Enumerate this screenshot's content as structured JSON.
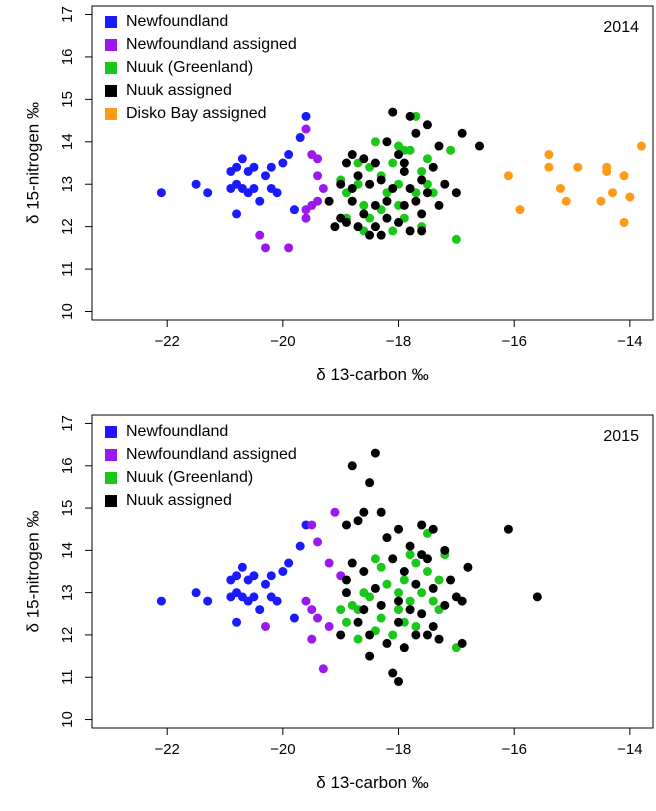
{
  "colors": {
    "Newfoundland": "#1a1aff",
    "Newfoundland assigned": "#9b19ef",
    "Nuuk (Greenland)": "#19c819",
    "Nuuk assigned": "#000000",
    "Disko Bay assigned": "#ff9a19"
  },
  "chart_data": [
    {
      "type": "scatter",
      "year_label": "2014",
      "xlabel": "δ 13-carbon ‰",
      "ylabel": "δ 15-nitrogen ‰",
      "xlim": [
        -23.3,
        -13.6
      ],
      "ylim": [
        9.8,
        17.2
      ],
      "x_ticks": [
        -22,
        -20,
        -18,
        -16,
        -14
      ],
      "x_tick_labels": [
        "−22",
        "−20",
        "−18",
        "−16",
        "−14"
      ],
      "y_ticks": [
        10,
        11,
        12,
        13,
        14,
        15,
        16,
        17
      ],
      "legend_position": "top-left",
      "series": [
        {
          "name": "Newfoundland",
          "points": [
            [
              -22.1,
              12.8
            ],
            [
              -21.5,
              13.0
            ],
            [
              -21.3,
              12.8
            ],
            [
              -20.9,
              13.3
            ],
            [
              -20.8,
              13.4
            ],
            [
              -20.7,
              13.6
            ],
            [
              -20.6,
              13.3
            ],
            [
              -20.5,
              13.4
            ],
            [
              -20.3,
              13.2
            ],
            [
              -20.2,
              13.4
            ],
            [
              -20.0,
              13.5
            ],
            [
              -19.9,
              13.7
            ],
            [
              -19.7,
              14.1
            ],
            [
              -19.6,
              14.6
            ],
            [
              -20.8,
              13.0
            ],
            [
              -20.7,
              12.9
            ],
            [
              -20.6,
              12.8
            ],
            [
              -20.5,
              12.9
            ],
            [
              -20.4,
              12.6
            ],
            [
              -20.2,
              12.9
            ],
            [
              -20.1,
              12.8
            ],
            [
              -20.9,
              12.9
            ],
            [
              -20.8,
              12.3
            ],
            [
              -19.8,
              12.4
            ]
          ]
        },
        {
          "name": "Newfoundland assigned",
          "points": [
            [
              -19.6,
              14.3
            ],
            [
              -19.5,
              13.7
            ],
            [
              -19.4,
              13.6
            ],
            [
              -19.4,
              13.2
            ],
            [
              -19.3,
              12.9
            ],
            [
              -19.5,
              12.5
            ],
            [
              -19.4,
              12.6
            ],
            [
              -19.6,
              12.4
            ],
            [
              -20.4,
              11.8
            ],
            [
              -20.3,
              11.5
            ],
            [
              -19.9,
              11.5
            ],
            [
              -19.6,
              12.2
            ]
          ]
        },
        {
          "name": "Nuuk (Greenland)",
          "points": [
            [
              -19.0,
              13.1
            ],
            [
              -18.9,
              12.8
            ],
            [
              -18.8,
              12.6
            ],
            [
              -18.7,
              13.0
            ],
            [
              -18.6,
              12.5
            ],
            [
              -18.5,
              13.4
            ],
            [
              -18.5,
              12.2
            ],
            [
              -18.4,
              14.0
            ],
            [
              -18.4,
              12.0
            ],
            [
              -18.3,
              13.2
            ],
            [
              -18.2,
              12.8
            ],
            [
              -18.1,
              13.5
            ],
            [
              -18.0,
              12.5
            ],
            [
              -18.0,
              13.0
            ],
            [
              -17.9,
              12.2
            ],
            [
              -17.8,
              13.8
            ],
            [
              -17.7,
              12.8
            ],
            [
              -17.7,
              14.6
            ],
            [
              -17.6,
              13.3
            ],
            [
              -17.5,
              13.6
            ],
            [
              -17.4,
              12.8
            ],
            [
              -17.1,
              13.8
            ],
            [
              -17.0,
              11.7
            ],
            [
              -18.9,
              12.2
            ],
            [
              -18.6,
              11.9
            ],
            [
              -18.3,
              12.4
            ],
            [
              -18.1,
              11.9
            ],
            [
              -17.9,
              13.8
            ],
            [
              -17.6,
              12.0
            ],
            [
              -17.5,
              13.0
            ],
            [
              -18.7,
              13.5
            ],
            [
              -18.0,
              13.9
            ]
          ]
        },
        {
          "name": "Nuuk assigned",
          "points": [
            [
              -19.1,
              12.0
            ],
            [
              -19.0,
              12.2
            ],
            [
              -19.0,
              13.0
            ],
            [
              -18.9,
              13.5
            ],
            [
              -18.9,
              12.1
            ],
            [
              -18.8,
              13.7
            ],
            [
              -18.8,
              12.6
            ],
            [
              -18.7,
              13.2
            ],
            [
              -18.7,
              12.0
            ],
            [
              -18.6,
              13.6
            ],
            [
              -18.6,
              12.3
            ],
            [
              -18.5,
              13.0
            ],
            [
              -18.5,
              11.8
            ],
            [
              -18.4,
              13.5
            ],
            [
              -18.4,
              12.5
            ],
            [
              -18.3,
              13.1
            ],
            [
              -18.3,
              11.8
            ],
            [
              -18.2,
              14.0
            ],
            [
              -18.2,
              12.2
            ],
            [
              -18.1,
              14.7
            ],
            [
              -18.1,
              12.9
            ],
            [
              -18.0,
              13.7
            ],
            [
              -18.0,
              12.1
            ],
            [
              -17.9,
              13.3
            ],
            [
              -17.9,
              12.5
            ],
            [
              -17.8,
              14.6
            ],
            [
              -17.8,
              12.9
            ],
            [
              -17.8,
              11.9
            ],
            [
              -17.7,
              14.2
            ],
            [
              -17.7,
              12.6
            ],
            [
              -17.6,
              13.1
            ],
            [
              -17.6,
              12.3
            ],
            [
              -17.5,
              14.4
            ],
            [
              -17.5,
              12.8
            ],
            [
              -17.4,
              13.4
            ],
            [
              -17.3,
              13.9
            ],
            [
              -17.2,
              13.0
            ],
            [
              -17.0,
              12.8
            ],
            [
              -16.9,
              14.2
            ],
            [
              -16.6,
              13.9
            ],
            [
              -19.2,
              12.6
            ],
            [
              -18.8,
              12.9
            ],
            [
              -18.4,
              12.0
            ],
            [
              -18.2,
              12.6
            ],
            [
              -17.9,
              13.5
            ],
            [
              -17.6,
              11.9
            ],
            [
              -17.3,
              12.5
            ]
          ]
        },
        {
          "name": "Disko Bay assigned",
          "points": [
            [
              -16.1,
              13.2
            ],
            [
              -15.9,
              12.4
            ],
            [
              -15.4,
              13.7
            ],
            [
              -15.4,
              13.4
            ],
            [
              -15.2,
              12.9
            ],
            [
              -15.1,
              12.6
            ],
            [
              -14.9,
              13.4
            ],
            [
              -14.5,
              12.6
            ],
            [
              -14.4,
              13.3
            ],
            [
              -14.4,
              13.4
            ],
            [
              -14.3,
              12.8
            ],
            [
              -14.1,
              13.2
            ],
            [
              -14.1,
              12.1
            ],
            [
              -14.0,
              12.7
            ],
            [
              -13.8,
              13.9
            ]
          ]
        }
      ]
    },
    {
      "type": "scatter",
      "year_label": "2015",
      "xlabel": "δ 13-carbon ‰",
      "ylabel": "δ 15-nitrogen ‰",
      "xlim": [
        -23.3,
        -13.6
      ],
      "ylim": [
        9.8,
        17.2
      ],
      "x_ticks": [
        -22,
        -20,
        -18,
        -16,
        -14
      ],
      "x_tick_labels": [
        "−22",
        "−20",
        "−18",
        "−16",
        "−14"
      ],
      "y_ticks": [
        10,
        11,
        12,
        13,
        14,
        15,
        16,
        17
      ],
      "legend_position": "top-left",
      "series": [
        {
          "name": "Newfoundland",
          "points": [
            [
              -22.1,
              12.8
            ],
            [
              -21.5,
              13.0
            ],
            [
              -21.3,
              12.8
            ],
            [
              -20.9,
              13.3
            ],
            [
              -20.8,
              13.4
            ],
            [
              -20.7,
              13.6
            ],
            [
              -20.6,
              13.3
            ],
            [
              -20.5,
              13.4
            ],
            [
              -20.3,
              13.2
            ],
            [
              -20.2,
              13.4
            ],
            [
              -20.0,
              13.5
            ],
            [
              -19.9,
              13.7
            ],
            [
              -19.7,
              14.1
            ],
            [
              -19.6,
              14.6
            ],
            [
              -20.8,
              13.0
            ],
            [
              -20.7,
              12.9
            ],
            [
              -20.6,
              12.8
            ],
            [
              -20.5,
              12.9
            ],
            [
              -20.4,
              12.6
            ],
            [
              -20.2,
              12.9
            ],
            [
              -20.1,
              12.8
            ],
            [
              -20.9,
              12.9
            ],
            [
              -20.8,
              12.3
            ],
            [
              -19.8,
              12.4
            ]
          ]
        },
        {
          "name": "Newfoundland assigned",
          "points": [
            [
              -19.5,
              14.6
            ],
            [
              -19.4,
              14.2
            ],
            [
              -19.1,
              14.9
            ],
            [
              -19.2,
              13.7
            ],
            [
              -19.0,
              13.4
            ],
            [
              -19.6,
              12.8
            ],
            [
              -19.5,
              12.6
            ],
            [
              -19.4,
              12.4
            ],
            [
              -19.5,
              11.9
            ],
            [
              -20.3,
              12.2
            ],
            [
              -19.3,
              11.2
            ],
            [
              -19.2,
              12.2
            ]
          ]
        },
        {
          "name": "Nuuk (Greenland)",
          "points": [
            [
              -19.0,
              12.6
            ],
            [
              -18.9,
              12.3
            ],
            [
              -18.8,
              12.7
            ],
            [
              -18.7,
              12.6
            ],
            [
              -18.6,
              13.0
            ],
            [
              -18.5,
              12.9
            ],
            [
              -18.4,
              13.8
            ],
            [
              -18.4,
              12.1
            ],
            [
              -18.3,
              12.4
            ],
            [
              -18.2,
              13.2
            ],
            [
              -18.0,
              13.0
            ],
            [
              -18.0,
              12.6
            ],
            [
              -17.9,
              13.3
            ],
            [
              -17.8,
              12.8
            ],
            [
              -17.7,
              13.7
            ],
            [
              -17.7,
              12.2
            ],
            [
              -17.6,
              14.6
            ],
            [
              -17.6,
              13.0
            ],
            [
              -17.5,
              13.5
            ],
            [
              -17.5,
              14.4
            ],
            [
              -17.4,
              12.8
            ],
            [
              -17.3,
              13.3
            ],
            [
              -17.2,
              13.9
            ],
            [
              -17.0,
              11.7
            ],
            [
              -18.7,
              11.9
            ],
            [
              -18.1,
              12.0
            ],
            [
              -17.8,
              13.9
            ],
            [
              -17.3,
              12.6
            ],
            [
              -18.3,
              13.6
            ],
            [
              -17.9,
              12.3
            ]
          ]
        },
        {
          "name": "Nuuk assigned",
          "points": [
            [
              -18.8,
              16.0
            ],
            [
              -18.4,
              16.3
            ],
            [
              -18.5,
              15.6
            ],
            [
              -18.7,
              14.7
            ],
            [
              -18.9,
              14.6
            ],
            [
              -18.6,
              14.9
            ],
            [
              -18.3,
              14.9
            ],
            [
              -18.2,
              14.3
            ],
            [
              -18.0,
              14.5
            ],
            [
              -17.8,
              14.1
            ],
            [
              -17.6,
              14.6
            ],
            [
              -17.4,
              14.5
            ],
            [
              -17.2,
              14.0
            ],
            [
              -16.1,
              14.5
            ],
            [
              -15.6,
              12.9
            ],
            [
              -19.0,
              12.0
            ],
            [
              -18.9,
              13.3
            ],
            [
              -18.8,
              13.7
            ],
            [
              -18.7,
              12.3
            ],
            [
              -18.6,
              13.5
            ],
            [
              -18.5,
              12.0
            ],
            [
              -18.5,
              11.5
            ],
            [
              -18.4,
              13.1
            ],
            [
              -18.3,
              12.7
            ],
            [
              -18.2,
              11.8
            ],
            [
              -18.1,
              13.8
            ],
            [
              -18.0,
              12.8
            ],
            [
              -18.0,
              12.3
            ],
            [
              -17.9,
              13.5
            ],
            [
              -17.9,
              11.7
            ],
            [
              -17.8,
              12.6
            ],
            [
              -17.7,
              13.2
            ],
            [
              -17.6,
              12.5
            ],
            [
              -17.5,
              13.8
            ],
            [
              -17.5,
              12.0
            ],
            [
              -17.4,
              13.1
            ],
            [
              -17.3,
              11.9
            ],
            [
              -17.2,
              12.7
            ],
            [
              -17.1,
              13.3
            ],
            [
              -17.0,
              12.9
            ],
            [
              -16.9,
              11.8
            ],
            [
              -16.9,
              12.8
            ],
            [
              -16.8,
              13.6
            ],
            [
              -18.1,
              11.1
            ],
            [
              -18.0,
              10.9
            ],
            [
              -18.6,
              12.6
            ],
            [
              -17.7,
              12.0
            ],
            [
              -17.4,
              12.2
            ],
            [
              -18.9,
              13.0
            ],
            [
              -17.6,
              13.9
            ]
          ]
        }
      ]
    }
  ]
}
